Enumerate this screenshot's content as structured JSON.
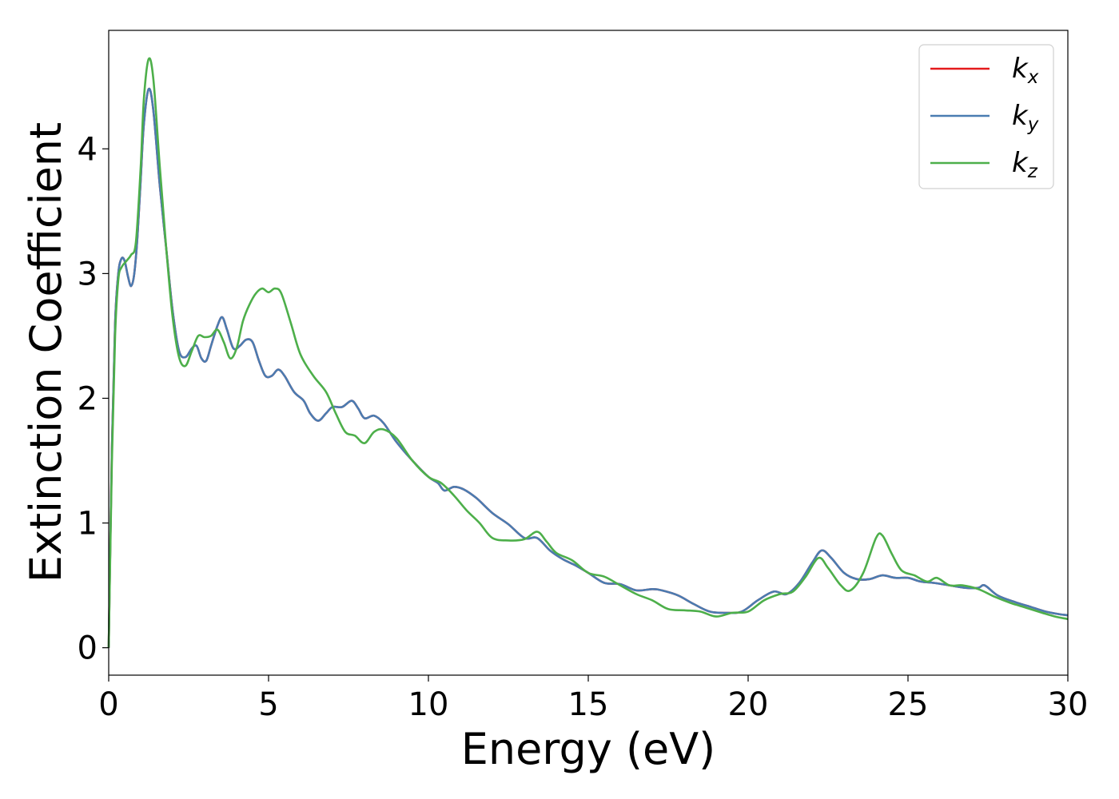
{
  "chart_data": {
    "type": "line",
    "title": "",
    "xlabel": "Energy (eV)",
    "ylabel": "Extinction Coefficient",
    "xlim": [
      0,
      30
    ],
    "ylim": [
      -0.22,
      4.95
    ],
    "xticks": [
      0,
      5,
      10,
      15,
      20,
      25,
      30
    ],
    "yticks": [
      0,
      1,
      2,
      3,
      4
    ],
    "grid": false,
    "legend": {
      "placement": "top-right"
    },
    "series": [
      {
        "name": "k",
        "subscript": "x",
        "color": "#e41a1c",
        "points": [
          [
            0,
            0
          ],
          [
            0.1,
            1.6
          ],
          [
            0.2,
            2.6
          ],
          [
            0.3,
            3.0
          ],
          [
            0.4,
            3.12
          ],
          [
            0.5,
            3.1
          ],
          [
            0.6,
            2.98
          ],
          [
            0.7,
            2.9
          ],
          [
            0.8,
            3.0
          ],
          [
            0.9,
            3.3
          ],
          [
            1.0,
            3.75
          ],
          [
            1.1,
            4.2
          ],
          [
            1.25,
            4.48
          ],
          [
            1.4,
            4.3
          ],
          [
            1.6,
            3.7
          ],
          [
            1.8,
            3.2
          ],
          [
            2.0,
            2.7
          ],
          [
            2.2,
            2.38
          ],
          [
            2.4,
            2.33
          ],
          [
            2.6,
            2.4
          ],
          [
            2.75,
            2.42
          ],
          [
            2.9,
            2.32
          ],
          [
            3.05,
            2.3
          ],
          [
            3.2,
            2.42
          ],
          [
            3.4,
            2.58
          ],
          [
            3.55,
            2.65
          ],
          [
            3.7,
            2.55
          ],
          [
            3.9,
            2.4
          ],
          [
            4.1,
            2.42
          ],
          [
            4.3,
            2.47
          ],
          [
            4.5,
            2.45
          ],
          [
            4.7,
            2.3
          ],
          [
            4.9,
            2.18
          ],
          [
            5.1,
            2.18
          ],
          [
            5.3,
            2.23
          ],
          [
            5.5,
            2.18
          ],
          [
            5.8,
            2.05
          ],
          [
            6.1,
            1.98
          ],
          [
            6.3,
            1.88
          ],
          [
            6.55,
            1.82
          ],
          [
            6.8,
            1.88
          ],
          [
            7.0,
            1.93
          ],
          [
            7.3,
            1.93
          ],
          [
            7.6,
            1.98
          ],
          [
            7.8,
            1.92
          ],
          [
            8.0,
            1.84
          ],
          [
            8.3,
            1.86
          ],
          [
            8.6,
            1.8
          ],
          [
            9.0,
            1.65
          ],
          [
            9.5,
            1.5
          ],
          [
            10.0,
            1.37
          ],
          [
            10.3,
            1.32
          ],
          [
            10.5,
            1.26
          ],
          [
            10.8,
            1.29
          ],
          [
            11.1,
            1.27
          ],
          [
            11.5,
            1.2
          ],
          [
            12.0,
            1.08
          ],
          [
            12.5,
            0.99
          ],
          [
            13.0,
            0.88
          ],
          [
            13.4,
            0.88
          ],
          [
            13.8,
            0.78
          ],
          [
            14.2,
            0.71
          ],
          [
            14.6,
            0.66
          ],
          [
            15.0,
            0.6
          ],
          [
            15.5,
            0.52
          ],
          [
            16.0,
            0.51
          ],
          [
            16.5,
            0.46
          ],
          [
            17.0,
            0.47
          ],
          [
            17.3,
            0.46
          ],
          [
            17.8,
            0.42
          ],
          [
            18.3,
            0.35
          ],
          [
            18.8,
            0.29
          ],
          [
            19.3,
            0.28
          ],
          [
            19.8,
            0.29
          ],
          [
            20.3,
            0.38
          ],
          [
            20.8,
            0.45
          ],
          [
            21.2,
            0.43
          ],
          [
            21.6,
            0.52
          ],
          [
            22.0,
            0.68
          ],
          [
            22.3,
            0.78
          ],
          [
            22.6,
            0.72
          ],
          [
            23.0,
            0.6
          ],
          [
            23.4,
            0.55
          ],
          [
            23.8,
            0.55
          ],
          [
            24.2,
            0.58
          ],
          [
            24.6,
            0.56
          ],
          [
            25.0,
            0.56
          ],
          [
            25.4,
            0.53
          ],
          [
            25.8,
            0.52
          ],
          [
            26.3,
            0.5
          ],
          [
            26.8,
            0.48
          ],
          [
            27.2,
            0.48
          ],
          [
            27.4,
            0.5
          ],
          [
            27.8,
            0.42
          ],
          [
            28.3,
            0.37
          ],
          [
            28.8,
            0.33
          ],
          [
            29.3,
            0.29
          ],
          [
            29.7,
            0.27
          ],
          [
            30,
            0.26
          ]
        ]
      },
      {
        "name": "k",
        "subscript": "y",
        "color": "#4a7cb1",
        "points": [
          [
            0,
            0
          ],
          [
            0.1,
            1.6
          ],
          [
            0.2,
            2.6
          ],
          [
            0.3,
            3.0
          ],
          [
            0.4,
            3.12
          ],
          [
            0.5,
            3.1
          ],
          [
            0.6,
            2.98
          ],
          [
            0.7,
            2.9
          ],
          [
            0.8,
            3.0
          ],
          [
            0.9,
            3.3
          ],
          [
            1.0,
            3.75
          ],
          [
            1.1,
            4.2
          ],
          [
            1.25,
            4.48
          ],
          [
            1.4,
            4.3
          ],
          [
            1.6,
            3.7
          ],
          [
            1.8,
            3.2
          ],
          [
            2.0,
            2.7
          ],
          [
            2.2,
            2.38
          ],
          [
            2.4,
            2.33
          ],
          [
            2.6,
            2.4
          ],
          [
            2.75,
            2.42
          ],
          [
            2.9,
            2.32
          ],
          [
            3.05,
            2.3
          ],
          [
            3.2,
            2.42
          ],
          [
            3.4,
            2.58
          ],
          [
            3.55,
            2.65
          ],
          [
            3.7,
            2.55
          ],
          [
            3.9,
            2.4
          ],
          [
            4.1,
            2.42
          ],
          [
            4.3,
            2.47
          ],
          [
            4.5,
            2.45
          ],
          [
            4.7,
            2.3
          ],
          [
            4.9,
            2.18
          ],
          [
            5.1,
            2.18
          ],
          [
            5.3,
            2.23
          ],
          [
            5.5,
            2.18
          ],
          [
            5.8,
            2.05
          ],
          [
            6.1,
            1.98
          ],
          [
            6.3,
            1.88
          ],
          [
            6.55,
            1.82
          ],
          [
            6.8,
            1.88
          ],
          [
            7.0,
            1.93
          ],
          [
            7.3,
            1.93
          ],
          [
            7.6,
            1.98
          ],
          [
            7.8,
            1.92
          ],
          [
            8.0,
            1.84
          ],
          [
            8.3,
            1.86
          ],
          [
            8.6,
            1.8
          ],
          [
            9.0,
            1.65
          ],
          [
            9.5,
            1.5
          ],
          [
            10.0,
            1.37
          ],
          [
            10.3,
            1.32
          ],
          [
            10.5,
            1.26
          ],
          [
            10.8,
            1.29
          ],
          [
            11.1,
            1.27
          ],
          [
            11.5,
            1.2
          ],
          [
            12.0,
            1.08
          ],
          [
            12.5,
            0.99
          ],
          [
            13.0,
            0.88
          ],
          [
            13.4,
            0.88
          ],
          [
            13.8,
            0.78
          ],
          [
            14.2,
            0.71
          ],
          [
            14.6,
            0.66
          ],
          [
            15.0,
            0.6
          ],
          [
            15.5,
            0.52
          ],
          [
            16.0,
            0.51
          ],
          [
            16.5,
            0.46
          ],
          [
            17.0,
            0.47
          ],
          [
            17.3,
            0.46
          ],
          [
            17.8,
            0.42
          ],
          [
            18.3,
            0.35
          ],
          [
            18.8,
            0.29
          ],
          [
            19.3,
            0.28
          ],
          [
            19.8,
            0.29
          ],
          [
            20.3,
            0.38
          ],
          [
            20.8,
            0.45
          ],
          [
            21.2,
            0.43
          ],
          [
            21.6,
            0.52
          ],
          [
            22.0,
            0.68
          ],
          [
            22.3,
            0.78
          ],
          [
            22.6,
            0.72
          ],
          [
            23.0,
            0.6
          ],
          [
            23.4,
            0.55
          ],
          [
            23.8,
            0.55
          ],
          [
            24.2,
            0.58
          ],
          [
            24.6,
            0.56
          ],
          [
            25.0,
            0.56
          ],
          [
            25.4,
            0.53
          ],
          [
            25.8,
            0.52
          ],
          [
            26.3,
            0.5
          ],
          [
            26.8,
            0.48
          ],
          [
            27.2,
            0.48
          ],
          [
            27.4,
            0.5
          ],
          [
            27.8,
            0.42
          ],
          [
            28.3,
            0.37
          ],
          [
            28.8,
            0.33
          ],
          [
            29.3,
            0.29
          ],
          [
            29.7,
            0.27
          ],
          [
            30,
            0.26
          ]
        ]
      },
      {
        "name": "k",
        "subscript": "z",
        "color": "#4daf4a",
        "points": [
          [
            0,
            0
          ],
          [
            0.1,
            1.5
          ],
          [
            0.2,
            2.5
          ],
          [
            0.3,
            2.95
          ],
          [
            0.4,
            3.05
          ],
          [
            0.55,
            3.1
          ],
          [
            0.7,
            3.15
          ],
          [
            0.85,
            3.25
          ],
          [
            1.0,
            3.85
          ],
          [
            1.1,
            4.4
          ],
          [
            1.25,
            4.72
          ],
          [
            1.4,
            4.55
          ],
          [
            1.6,
            3.85
          ],
          [
            1.8,
            3.2
          ],
          [
            2.0,
            2.65
          ],
          [
            2.2,
            2.33
          ],
          [
            2.4,
            2.26
          ],
          [
            2.6,
            2.38
          ],
          [
            2.8,
            2.5
          ],
          [
            3.0,
            2.49
          ],
          [
            3.2,
            2.5
          ],
          [
            3.4,
            2.55
          ],
          [
            3.6,
            2.45
          ],
          [
            3.8,
            2.32
          ],
          [
            4.0,
            2.4
          ],
          [
            4.2,
            2.62
          ],
          [
            4.4,
            2.75
          ],
          [
            4.6,
            2.84
          ],
          [
            4.8,
            2.88
          ],
          [
            5.0,
            2.85
          ],
          [
            5.2,
            2.88
          ],
          [
            5.4,
            2.84
          ],
          [
            5.7,
            2.6
          ],
          [
            6.0,
            2.35
          ],
          [
            6.4,
            2.18
          ],
          [
            6.8,
            2.05
          ],
          [
            7.1,
            1.88
          ],
          [
            7.4,
            1.73
          ],
          [
            7.7,
            1.7
          ],
          [
            8.0,
            1.64
          ],
          [
            8.3,
            1.73
          ],
          [
            8.6,
            1.75
          ],
          [
            9.0,
            1.68
          ],
          [
            9.5,
            1.5
          ],
          [
            10.0,
            1.37
          ],
          [
            10.4,
            1.32
          ],
          [
            10.8,
            1.22
          ],
          [
            11.2,
            1.1
          ],
          [
            11.6,
            1.0
          ],
          [
            12.0,
            0.88
          ],
          [
            12.5,
            0.86
          ],
          [
            13.0,
            0.87
          ],
          [
            13.4,
            0.93
          ],
          [
            13.7,
            0.85
          ],
          [
            14.0,
            0.76
          ],
          [
            14.5,
            0.7
          ],
          [
            15.0,
            0.6
          ],
          [
            15.5,
            0.57
          ],
          [
            16.0,
            0.5
          ],
          [
            16.5,
            0.43
          ],
          [
            17.0,
            0.38
          ],
          [
            17.5,
            0.31
          ],
          [
            18.0,
            0.3
          ],
          [
            18.5,
            0.29
          ],
          [
            19.0,
            0.25
          ],
          [
            19.5,
            0.28
          ],
          [
            20.0,
            0.29
          ],
          [
            20.5,
            0.38
          ],
          [
            21.0,
            0.43
          ],
          [
            21.4,
            0.45
          ],
          [
            21.8,
            0.57
          ],
          [
            22.2,
            0.72
          ],
          [
            22.5,
            0.64
          ],
          [
            22.9,
            0.5
          ],
          [
            23.2,
            0.46
          ],
          [
            23.6,
            0.6
          ],
          [
            24.0,
            0.88
          ],
          [
            24.2,
            0.9
          ],
          [
            24.5,
            0.75
          ],
          [
            24.8,
            0.62
          ],
          [
            25.2,
            0.58
          ],
          [
            25.6,
            0.53
          ],
          [
            25.9,
            0.56
          ],
          [
            26.3,
            0.5
          ],
          [
            26.7,
            0.5
          ],
          [
            27.2,
            0.47
          ],
          [
            27.7,
            0.41
          ],
          [
            28.2,
            0.36
          ],
          [
            28.7,
            0.32
          ],
          [
            29.2,
            0.28
          ],
          [
            29.6,
            0.25
          ],
          [
            30,
            0.23
          ]
        ]
      }
    ]
  }
}
